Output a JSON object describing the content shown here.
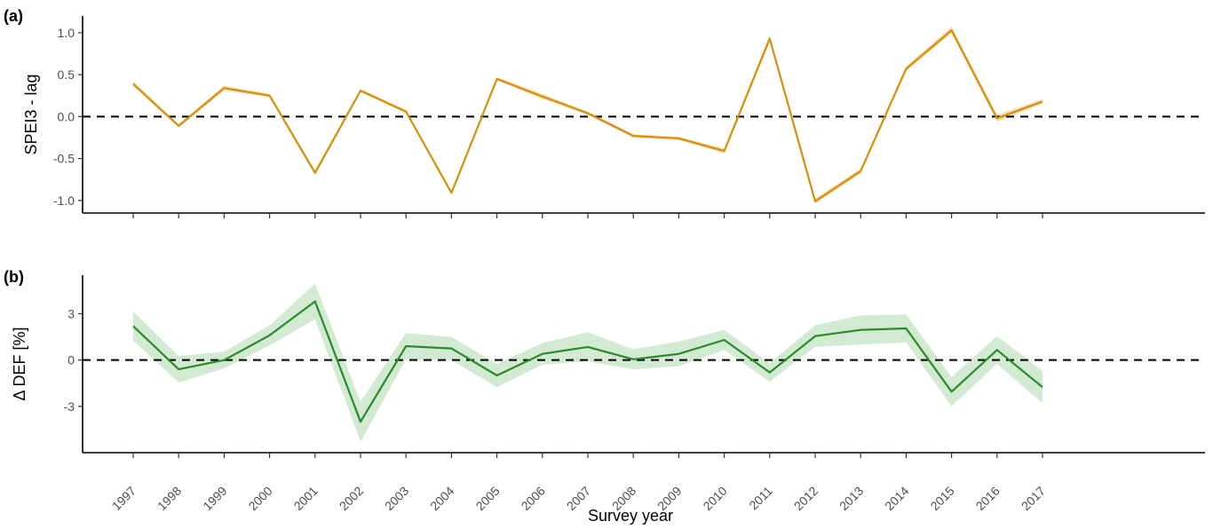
{
  "chart_data": [
    {
      "type": "line",
      "panel_label": "(a)",
      "ylabel": "SPEI3 - lag",
      "ylim": [
        -1.15,
        1.2
      ],
      "yticks": [
        -1.0,
        -0.5,
        0.0,
        0.5,
        1.0
      ],
      "ytick_labels": [
        "-1.0",
        "-0.5",
        "0.0",
        "0.5",
        "1.0"
      ],
      "reference_line": 0,
      "x": [
        1997,
        1998,
        1999,
        2000,
        2001,
        2002,
        2003,
        2004,
        2005,
        2006,
        2007,
        2008,
        2009,
        2010,
        2011,
        2012,
        2013,
        2014,
        2015,
        2016,
        2017
      ],
      "series": [
        {
          "values": [
            0.39,
            -0.11,
            0.34,
            0.25,
            -0.67,
            0.31,
            0.06,
            -0.91,
            0.45,
            0.24,
            0.04,
            -0.23,
            -0.26,
            -0.41,
            0.93,
            -1.01,
            -0.65,
            0.57,
            1.03,
            -0.02,
            0.18
          ],
          "ci_halfwidth": [
            0.03,
            0.02,
            0.03,
            0.02,
            0.03,
            0.02,
            0.02,
            0.02,
            0.02,
            0.03,
            0.02,
            0.02,
            0.02,
            0.03,
            0.04,
            0.03,
            0.03,
            0.03,
            0.04,
            0.04,
            0.03
          ],
          "color": "#D4900B",
          "band_color": "#F5DDB5"
        }
      ]
    },
    {
      "type": "line",
      "panel_label": "(b)",
      "ylabel": "Δ DEF [%]",
      "ylim": [
        -6,
        5.5
      ],
      "yticks": [
        -3,
        0,
        3
      ],
      "ytick_labels": [
        "-3",
        "0",
        "3"
      ],
      "reference_line": 0,
      "xlabel": "Survey year",
      "x": [
        1997,
        1998,
        1999,
        2000,
        2001,
        2002,
        2003,
        2004,
        2005,
        2006,
        2007,
        2008,
        2009,
        2010,
        2011,
        2012,
        2013,
        2014,
        2015,
        2016,
        2017
      ],
      "xtick_labels": [
        "1997",
        "1998",
        "1999",
        "2000",
        "2001",
        "2002",
        "2003",
        "2004",
        "2005",
        "2006",
        "2007",
        "2008",
        "2009",
        "2010",
        "2011",
        "2012",
        "2013",
        "2014",
        "2015",
        "2016",
        "2017"
      ],
      "series": [
        {
          "values": [
            2.2,
            -0.6,
            0.0,
            1.6,
            3.8,
            -4.0,
            0.9,
            0.75,
            -1.0,
            0.4,
            0.85,
            0.05,
            0.4,
            1.3,
            -0.8,
            1.55,
            1.95,
            2.05,
            -2.05,
            0.65,
            -1.75
          ],
          "ci_halfwidth": [
            0.95,
            0.85,
            0.55,
            0.65,
            1.15,
            1.3,
            0.85,
            0.75,
            0.75,
            0.7,
            0.95,
            0.65,
            0.8,
            0.65,
            0.6,
            0.7,
            0.95,
            0.9,
            0.95,
            0.9,
            1.05
          ],
          "color": "#2A8A2A",
          "band_color": "#D2EAD2"
        }
      ]
    }
  ]
}
